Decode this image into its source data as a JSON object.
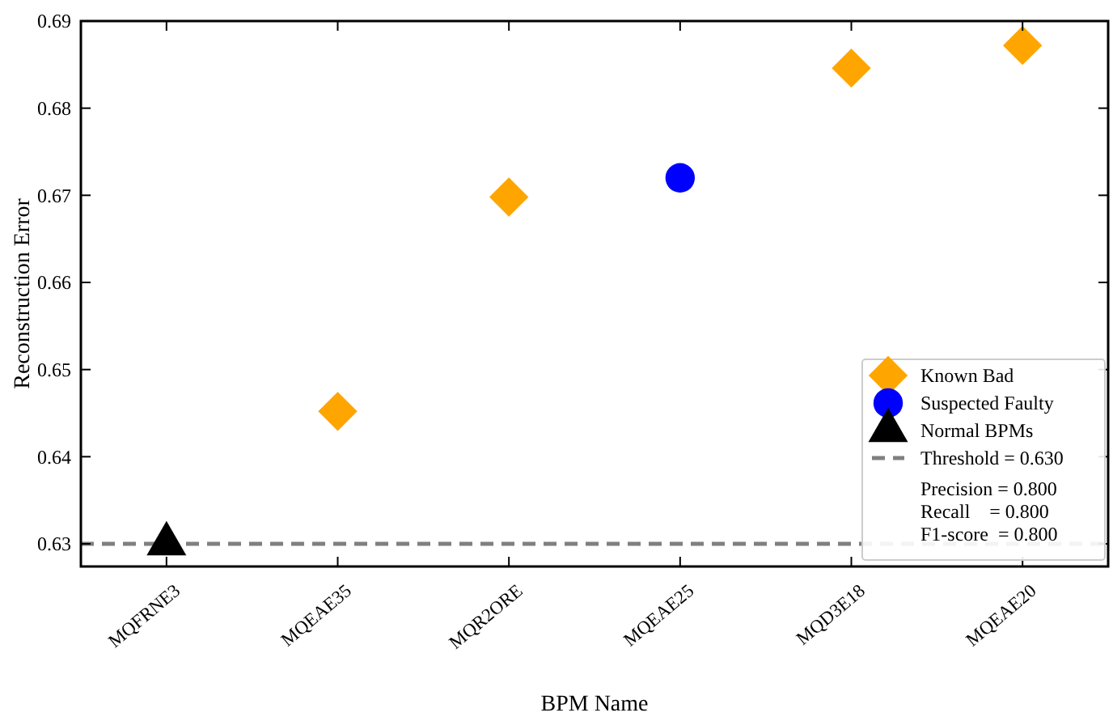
{
  "chart_data": {
    "type": "scatter",
    "xlabel": "BPM Name",
    "ylabel": "Reconstruction Error",
    "categories": [
      "MQFRNE3",
      "MQEAE35",
      "MQR2ORE",
      "MQEAE25",
      "MQD3E18",
      "MQEAE20"
    ],
    "series": [
      {
        "name": "Known Bad",
        "color": "#ffa500",
        "marker": "diamond",
        "values": [
          null,
          0.6452,
          0.6698,
          null,
          0.6846,
          0.6872
        ]
      },
      {
        "name": "Suspected Faulty",
        "color": "#0000ff",
        "marker": "circle",
        "values": [
          null,
          null,
          null,
          0.672,
          null,
          null
        ]
      },
      {
        "name": "Normal BPMs",
        "color": "#000000",
        "marker": "triangle",
        "values": [
          0.63,
          null,
          null,
          null,
          null,
          null
        ]
      }
    ],
    "ref_lines": [
      {
        "axis": "y",
        "value": 0.63,
        "label": "Threshold = 0.630",
        "color": "#808080",
        "line_style": "dashed"
      }
    ],
    "annotations": [
      "Precision = 0.800",
      "Recall    = 0.800",
      "F1-score  = 0.800"
    ],
    "ylim": [
      0.6274,
      0.69
    ],
    "yticks": [
      0.63,
      0.64,
      0.65,
      0.66,
      0.67,
      0.68,
      0.69
    ],
    "legend": "bottom right",
    "grid": false
  }
}
